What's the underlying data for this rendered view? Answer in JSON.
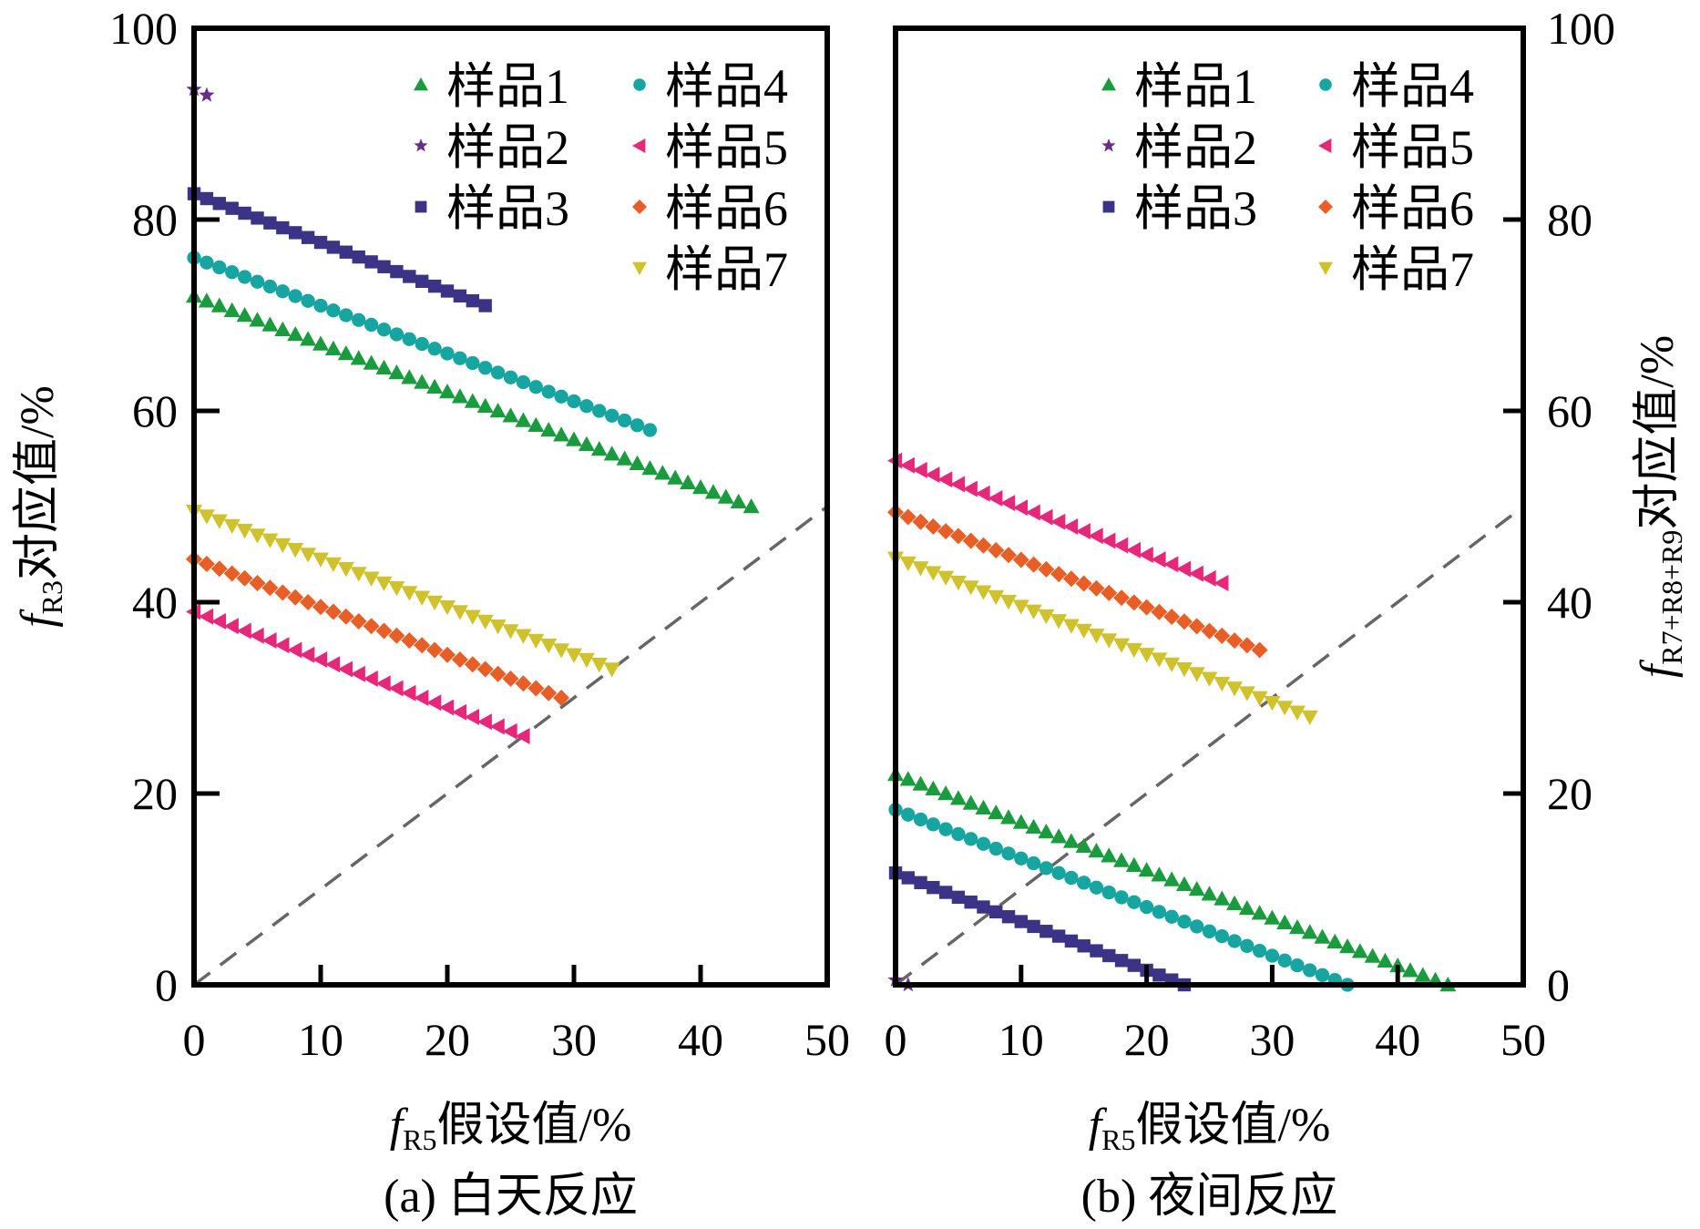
{
  "chart_data": [
    {
      "id": "day",
      "type": "scatter",
      "caption": "(a) 白天反应",
      "xlabel": {
        "italic": "f",
        "sub": "R5",
        "rest": "假设值/%"
      },
      "ylabel": {
        "italic": "f",
        "sub": "R3",
        "rest": "对应值/%"
      },
      "xlim": [
        0,
        50
      ],
      "ylim": [
        0,
        100
      ],
      "xticks": [
        0,
        10,
        20,
        30,
        40,
        50
      ],
      "yticks": [
        0,
        20,
        40,
        60,
        80,
        100
      ],
      "y_axis_side": "left",
      "reference_line": {
        "style": "dashed",
        "from": [
          0,
          0
        ],
        "to": [
          50,
          50
        ],
        "color": "#666666"
      },
      "legend_position": "top-right",
      "series": [
        {
          "name": "样品1",
          "marker": "triangle-up",
          "color": "#1a9c3e",
          "x_start": 0,
          "x_end": 44,
          "y_start": 72,
          "y_end": 50
        },
        {
          "name": "样品2",
          "marker": "star",
          "color": "#6a2c8a",
          "x_start": 0,
          "x_end": 1,
          "y_start": 93.6,
          "y_end": 93
        },
        {
          "name": "样品3",
          "marker": "square",
          "color": "#3b3486",
          "x_start": 0,
          "x_end": 23,
          "y_start": 82.7,
          "y_end": 71
        },
        {
          "name": "样品4",
          "marker": "circle",
          "color": "#16a5a0",
          "x_start": 0,
          "x_end": 36,
          "y_start": 76,
          "y_end": 58
        },
        {
          "name": "样品5",
          "marker": "triangle-left",
          "color": "#e5287a",
          "x_start": 0,
          "x_end": 26,
          "y_start": 39,
          "y_end": 26
        },
        {
          "name": "样品6",
          "marker": "diamond",
          "color": "#e85e27",
          "x_start": 0,
          "x_end": 29,
          "y_start": 44.5,
          "y_end": 30
        },
        {
          "name": "样品7",
          "marker": "triangle-down",
          "color": "#cfc22c",
          "x_start": 0,
          "x_end": 33,
          "y_start": 49.5,
          "y_end": 33
        }
      ]
    },
    {
      "id": "night",
      "type": "scatter",
      "caption": "(b) 夜间反应",
      "xlabel": {
        "italic": "f",
        "sub": "R5",
        "rest": "假设值/%"
      },
      "ylabel": {
        "italic": "f",
        "sub": "R7+R8+R9",
        "rest": "对应值/%"
      },
      "xlim": [
        0,
        50
      ],
      "ylim": [
        0,
        100
      ],
      "xticks": [
        0,
        10,
        20,
        30,
        40,
        50
      ],
      "yticks": [
        0,
        20,
        40,
        60,
        80,
        100
      ],
      "y_axis_side": "right",
      "reference_line": {
        "style": "dashed",
        "from": [
          0,
          0
        ],
        "to": [
          50,
          50
        ],
        "color": "#666666"
      },
      "legend_position": "top-right",
      "series": [
        {
          "name": "样品1",
          "marker": "triangle-up",
          "color": "#1a9c3e",
          "x_start": 0,
          "x_end": 44,
          "y_start": 22,
          "y_end": 0
        },
        {
          "name": "样品2",
          "marker": "star",
          "color": "#6a2c8a",
          "x_start": 0,
          "x_end": 1,
          "y_start": 0.5,
          "y_end": 0
        },
        {
          "name": "样品3",
          "marker": "square",
          "color": "#3b3486",
          "x_start": 0,
          "x_end": 23,
          "y_start": 11.7,
          "y_end": 0
        },
        {
          "name": "样品4",
          "marker": "circle",
          "color": "#16a5a0",
          "x_start": 0,
          "x_end": 36,
          "y_start": 18.3,
          "y_end": 0
        },
        {
          "name": "样品5",
          "marker": "triangle-left",
          "color": "#e5287a",
          "x_start": 0,
          "x_end": 26,
          "y_start": 54.8,
          "y_end": 42
        },
        {
          "name": "样品6",
          "marker": "diamond",
          "color": "#e85e27",
          "x_start": 0,
          "x_end": 29,
          "y_start": 49.4,
          "y_end": 35
        },
        {
          "name": "样品7",
          "marker": "triangle-down",
          "color": "#cfc22c",
          "x_start": 0,
          "x_end": 33,
          "y_start": 44.6,
          "y_end": 28
        }
      ]
    }
  ]
}
